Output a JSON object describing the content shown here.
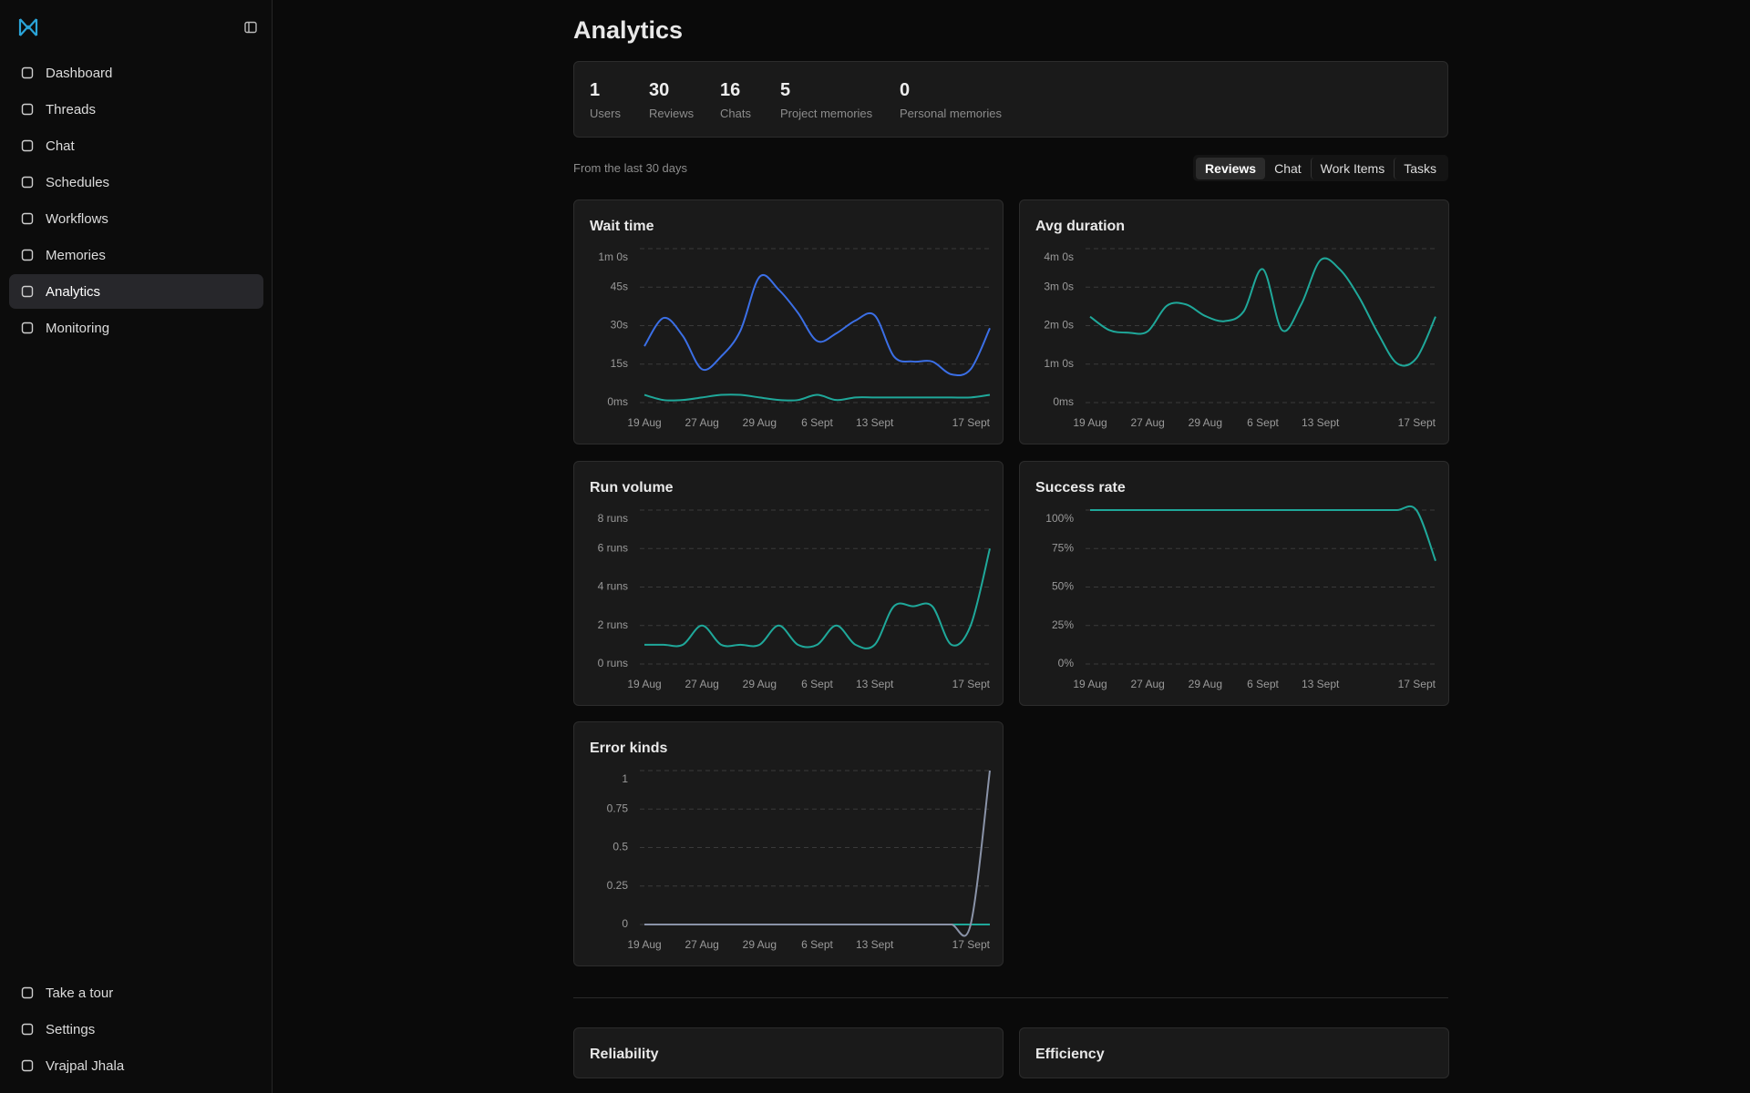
{
  "sidebar": {
    "nav": [
      {
        "label": "Dashboard"
      },
      {
        "label": "Threads"
      },
      {
        "label": "Chat"
      },
      {
        "label": "Schedules"
      },
      {
        "label": "Workflows"
      },
      {
        "label": "Memories"
      },
      {
        "label": "Analytics",
        "selected": true
      },
      {
        "label": "Monitoring"
      }
    ],
    "footer": [
      {
        "label": "Take a tour"
      },
      {
        "label": "Settings"
      },
      {
        "label": "Vrajpal Jhala"
      }
    ]
  },
  "page": {
    "title": "Analytics",
    "stats": [
      {
        "value": 1,
        "label": "Users"
      },
      {
        "value": 30,
        "label": "Reviews"
      },
      {
        "value": 16,
        "label": "Chats"
      },
      {
        "value": 5,
        "label": "Project memories"
      },
      {
        "value": 0,
        "label": "Personal memories"
      }
    ],
    "period": "From the last 30 days",
    "tabs": [
      {
        "label": "Reviews",
        "selected": true
      },
      {
        "label": "Chat"
      },
      {
        "label": "Work Items"
      },
      {
        "label": "Tasks"
      }
    ],
    "sections": [
      "Reliability",
      "Efficiency"
    ]
  },
  "chart_data": [
    {
      "type": "line",
      "title": "Wait time",
      "categories": [
        "19 Aug",
        null,
        null,
        "27 Aug",
        null,
        null,
        "29 Aug",
        null,
        null,
        "6 Sept",
        null,
        null,
        "13 Sept",
        null,
        null,
        null,
        null,
        null,
        "17 Sept"
      ],
      "series": [
        {
          "color": "#3b6fe6",
          "values": [
            22,
            33,
            26,
            13,
            18,
            28,
            49,
            44,
            35,
            24,
            27,
            32,
            34,
            18,
            16,
            16,
            11,
            13,
            29
          ]
        },
        {
          "color": "#1fa89a",
          "values": [
            3,
            1,
            1,
            2,
            3,
            3,
            2,
            1,
            1,
            3,
            1,
            2,
            2,
            2,
            2,
            2,
            2,
            2,
            3
          ]
        }
      ],
      "ylim": [
        0,
        60
      ],
      "yticks": [
        {
          "value": 0,
          "label": "0ms"
        },
        {
          "value": 15,
          "label": "15s"
        },
        {
          "value": 30,
          "label": "30s"
        },
        {
          "value": 45,
          "label": "45s"
        },
        {
          "value": 60,
          "label": "1m 0s"
        }
      ],
      "grid": true
    },
    {
      "type": "line",
      "title": "Avg duration",
      "categories": [
        "19 Aug",
        null,
        null,
        "27 Aug",
        null,
        null,
        "29 Aug",
        null,
        null,
        "6 Sept",
        null,
        null,
        "13 Sept",
        null,
        null,
        null,
        null,
        null,
        "17 Sept"
      ],
      "series": [
        {
          "color": "#1fa89a",
          "values": [
            134,
            113,
            109,
            111,
            151,
            153,
            135,
            127,
            142,
            208,
            113,
            153,
            222,
            208,
            165,
            108,
            61,
            69,
            134
          ]
        }
      ],
      "ylim": [
        0,
        240
      ],
      "yticks": [
        {
          "value": 0,
          "label": "0ms"
        },
        {
          "value": 60,
          "label": "1m 0s"
        },
        {
          "value": 120,
          "label": "2m 0s"
        },
        {
          "value": 180,
          "label": "3m 0s"
        },
        {
          "value": 240,
          "label": "4m 0s"
        }
      ],
      "grid": true
    },
    {
      "type": "line",
      "title": "Run volume",
      "categories": [
        "19 Aug",
        null,
        null,
        "27 Aug",
        null,
        null,
        "29 Aug",
        null,
        null,
        "6 Sept",
        null,
        null,
        "13 Sept",
        null,
        null,
        null,
        null,
        null,
        "17 Sept"
      ],
      "series": [
        {
          "color": "#1fa89a",
          "values": [
            1,
            1,
            1,
            2,
            1,
            1,
            1,
            2,
            1,
            1,
            2,
            1,
            1,
            3,
            3,
            3,
            1,
            2,
            6
          ]
        }
      ],
      "ylim": [
        0,
        8
      ],
      "yticks": [
        {
          "value": 0,
          "label": "0 runs"
        },
        {
          "value": 2,
          "label": "2 runs"
        },
        {
          "value": 4,
          "label": "4 runs"
        },
        {
          "value": 6,
          "label": "6 runs"
        },
        {
          "value": 8,
          "label": "8 runs"
        }
      ],
      "grid": true
    },
    {
      "type": "line",
      "title": "Success rate",
      "categories": [
        "19 Aug",
        null,
        null,
        "27 Aug",
        null,
        null,
        "29 Aug",
        null,
        null,
        "6 Sept",
        null,
        null,
        "13 Sept",
        null,
        null,
        null,
        null,
        null,
        "17 Sept"
      ],
      "series": [
        {
          "color": "#1fa89a",
          "values": [
            100,
            100,
            100,
            100,
            100,
            100,
            100,
            100,
            100,
            100,
            100,
            100,
            100,
            100,
            100,
            100,
            100,
            100,
            67
          ]
        }
      ],
      "ylim": [
        0,
        100
      ],
      "yticks": [
        {
          "value": 0,
          "label": "0%"
        },
        {
          "value": 25,
          "label": "25%"
        },
        {
          "value": 50,
          "label": "50%"
        },
        {
          "value": 75,
          "label": "75%"
        },
        {
          "value": 100,
          "label": "100%"
        }
      ],
      "grid": true
    },
    {
      "type": "line",
      "title": "Error kinds",
      "categories": [
        "19 Aug",
        null,
        null,
        "27 Aug",
        null,
        null,
        "29 Aug",
        null,
        null,
        "6 Sept",
        null,
        null,
        "13 Sept",
        null,
        null,
        null,
        null,
        null,
        "17 Sept"
      ],
      "series": [
        {
          "color": "#1fa89a",
          "values": [
            0,
            0,
            0,
            0,
            0,
            0,
            0,
            0,
            0,
            0,
            0,
            0,
            0,
            0,
            0,
            0,
            0,
            0,
            0
          ]
        },
        {
          "color": "#8a93a8",
          "values": [
            0,
            0,
            0,
            0,
            0,
            0,
            0,
            0,
            0,
            0,
            0,
            0,
            0,
            0,
            0,
            0,
            0,
            0,
            1
          ]
        }
      ],
      "ylim": [
        0,
        1
      ],
      "yticks": [
        0,
        0.25,
        0.5,
        0.75,
        1
      ],
      "grid": true
    }
  ]
}
